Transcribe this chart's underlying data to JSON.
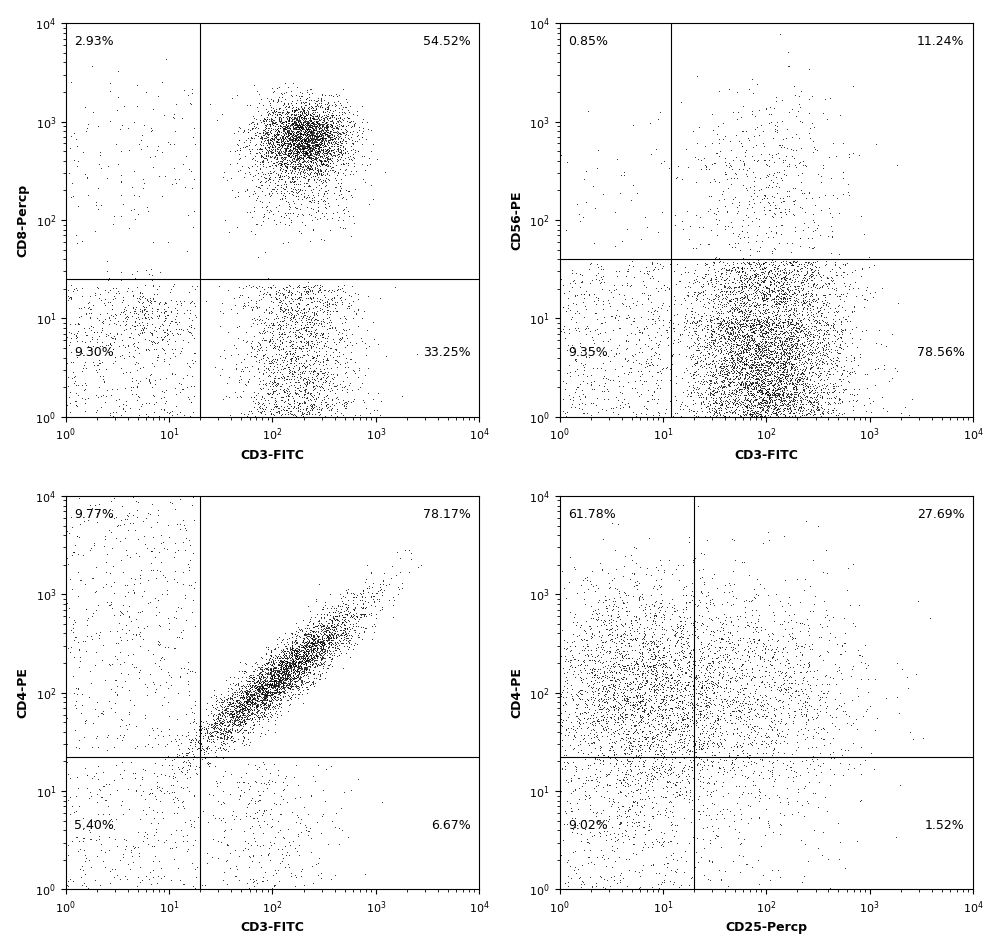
{
  "panels": [
    {
      "xlabel": "CD3-FITC",
      "ylabel": "CD8-Percp",
      "gate_x": 20,
      "gate_y": 25,
      "quadrant_labels": [
        "2.93%",
        "54.52%",
        "9.30%",
        "33.25%"
      ],
      "n_total": 5000
    },
    {
      "xlabel": "CD3-FITC",
      "ylabel": "CD56-PE",
      "gate_x": 12,
      "gate_y": 40,
      "quadrant_labels": [
        "0.85%",
        "11.24%",
        "9.35%",
        "78.56%"
      ],
      "n_total": 5000
    },
    {
      "xlabel": "CD3-FITC",
      "ylabel": "CD4-PE",
      "gate_x": 20,
      "gate_y": 22,
      "quadrant_labels": [
        "9.77%",
        "78.17%",
        "5.40%",
        "6.67%"
      ],
      "n_total": 5000
    },
    {
      "xlabel": "CD25-Percp",
      "ylabel": "CD4-PE",
      "gate_x": 20,
      "gate_y": 22,
      "quadrant_labels": [
        "61.78%",
        "27.69%",
        "9.02%",
        "1.52%"
      ],
      "n_total": 5000
    }
  ],
  "xlim": [
    1,
    10000
  ],
  "ylim": [
    1,
    10000
  ],
  "dot_size": 0.5,
  "dot_color": "#000000",
  "dot_alpha": 0.7,
  "background_color": "#ffffff",
  "label_fontsize": 9,
  "tick_fontsize": 8,
  "percent_fontsize": 9,
  "line_color": "#000000",
  "line_width": 0.8
}
